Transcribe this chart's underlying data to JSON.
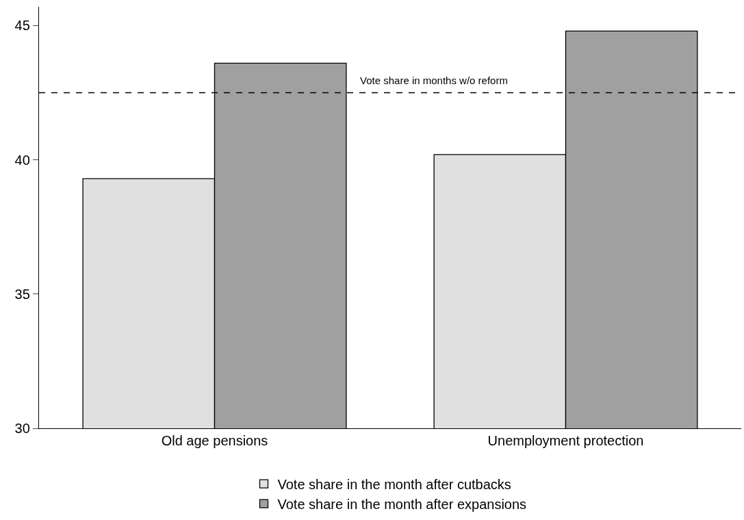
{
  "chart_data": {
    "type": "bar",
    "categories": [
      "Old age pensions",
      "Unemployment protection"
    ],
    "series": [
      {
        "name": "Vote share in the month after cutbacks",
        "color": "#e0e0e0",
        "values": [
          39.3,
          40.2
        ]
      },
      {
        "name": "Vote share in the month after expansions",
        "color": "#a0a0a0",
        "values": [
          43.6,
          44.8
        ]
      }
    ],
    "ylim": [
      30,
      45.7
    ],
    "yticks": [
      30,
      35,
      40,
      45
    ],
    "grid": false,
    "legend": "bottom",
    "ref_lines": [
      {
        "axis": "y",
        "value": 42.5,
        "label": "Vote share in months w/o reform",
        "line_style": "dashed",
        "color": "#000000"
      }
    ]
  }
}
